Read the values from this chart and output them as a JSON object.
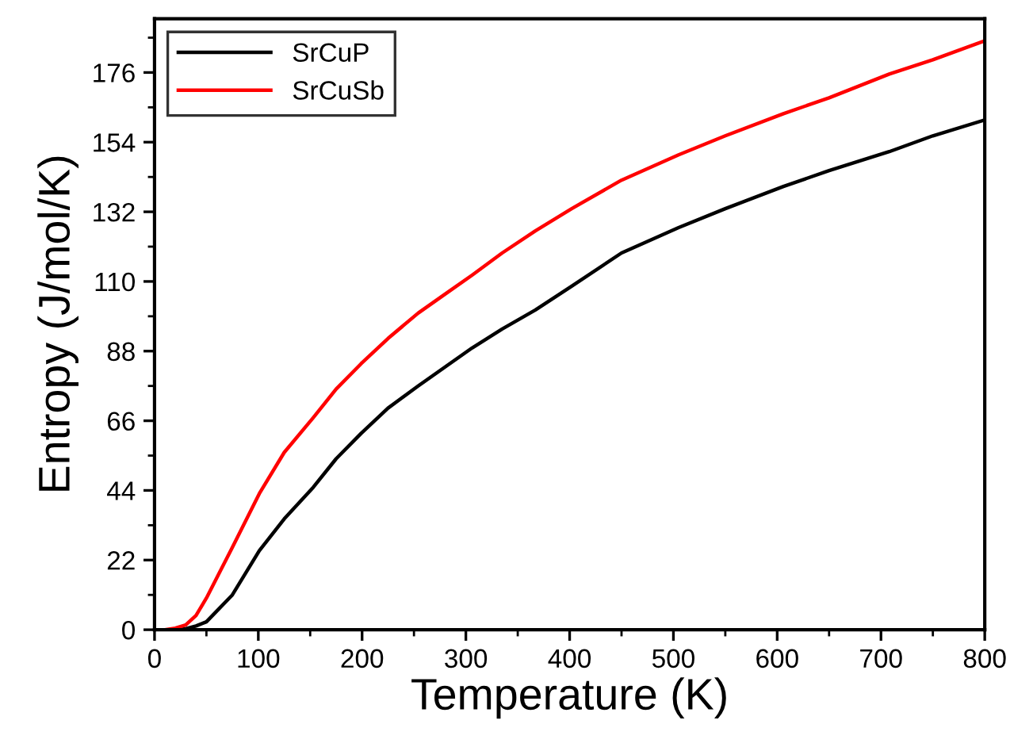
{
  "chart_data": {
    "type": "line",
    "xlabel": "Temperature (K)",
    "ylabel": "Entropy (J/mol/K)",
    "xlim": [
      0,
      800
    ],
    "ylim": [
      0,
      193
    ],
    "xticks": [
      0,
      100,
      200,
      300,
      400,
      500,
      600,
      700,
      800
    ],
    "yticks": [
      0,
      22,
      44,
      66,
      88,
      110,
      132,
      154,
      176
    ],
    "grid": false,
    "legend": "top left",
    "marker": "none",
    "line_style": "solid",
    "series": [
      {
        "name": "SrCuP",
        "color": "#000000",
        "x": [
          0,
          10,
          20,
          30,
          40,
          50,
          75,
          101,
          125,
          153,
          175,
          199,
          225,
          254,
          280,
          306,
          335,
          367,
          402,
          450,
          505,
          550,
          606,
          650,
          708,
          750,
          800
        ],
        "values": [
          0,
          0,
          0,
          0.3,
          1.2,
          2.5,
          11,
          25,
          35,
          45,
          54,
          62,
          70,
          77,
          83,
          89,
          95,
          101,
          108.5,
          119,
          127,
          133,
          140,
          145,
          151,
          156,
          161
        ]
      },
      {
        "name": "SrCuSb",
        "color": "#ff0000",
        "x": [
          0,
          10,
          20,
          30,
          40,
          50,
          75,
          101,
          125,
          153,
          175,
          199,
          225,
          254,
          280,
          306,
          335,
          367,
          402,
          450,
          505,
          550,
          606,
          650,
          708,
          750,
          800
        ],
        "values": [
          0,
          0,
          0.5,
          1.5,
          4.5,
          10,
          26,
          43,
          56,
          67,
          76,
          84,
          92,
          100,
          106,
          112,
          119,
          126,
          133,
          142,
          150,
          156,
          163,
          168,
          175.5,
          180,
          186
        ]
      }
    ]
  }
}
